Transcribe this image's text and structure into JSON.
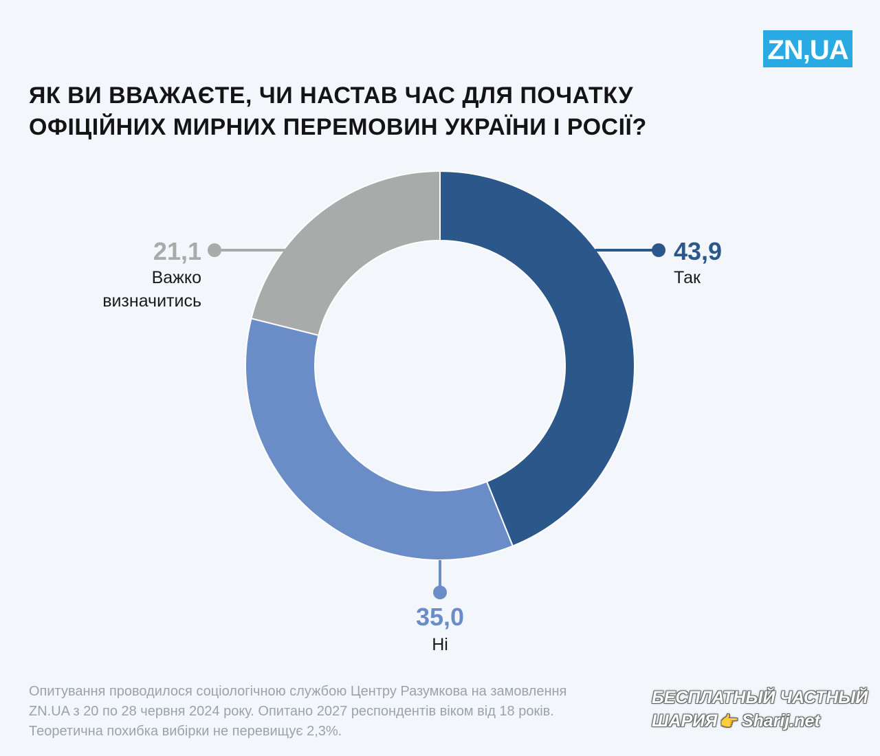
{
  "brand": {
    "logo_text": "ZN,UA",
    "color": "#29aae2"
  },
  "title_lines": [
    "ЯК ВИ ВВАЖАЄТЕ, ЧИ НАСТАВ ЧАС ДЛЯ ПОЧАТКУ",
    "ОФІЦІЙНИХ МИРНИХ ПЕРЕМОВИН УКРАЇНИ І РОСІЇ?"
  ],
  "chart_data": {
    "type": "pie",
    "variant": "donut",
    "title": "ЯК ВИ ВВАЖАЄТЕ, ЧИ НАСТАВ ЧАС ДЛЯ ПОЧАТКУ ОФІЦІЙНИХ МИРНИХ ПЕРЕМОВИН УКРАЇНИ І РОСІЇ?",
    "categories": [
      "Так",
      "Ні",
      "Важко визначитись"
    ],
    "values": [
      43.9,
      35.0,
      21.1
    ],
    "value_labels": [
      "43,9",
      "35,0",
      "21,1"
    ],
    "label_lines": [
      [
        "Так"
      ],
      [
        "Ні"
      ],
      [
        "Важко",
        "визначитись"
      ]
    ],
    "colors": [
      "#2b578a",
      "#6b8dc7",
      "#a9abaa"
    ],
    "start_angle_deg": 0,
    "direction": "clockwise",
    "legend": "none"
  },
  "footnote_lines": [
    "Опитування проводилося  соціологічною службою Центру Разумкова на замовлення",
    "ZN.UA з 20 по 28 червня 2024 року. Опитано 2027 респондентів віком від 18 років.",
    "Теоретична похибка вибірки не перевищує 2,3%."
  ],
  "watermark": {
    "line1": "БЕСПЛАТНЫЙ ЧАСТНЫЙ",
    "line2_left": "ШАРИЯ",
    "line2_right": "Sharij.net",
    "hand_icon": "pointing-hand-icon"
  }
}
